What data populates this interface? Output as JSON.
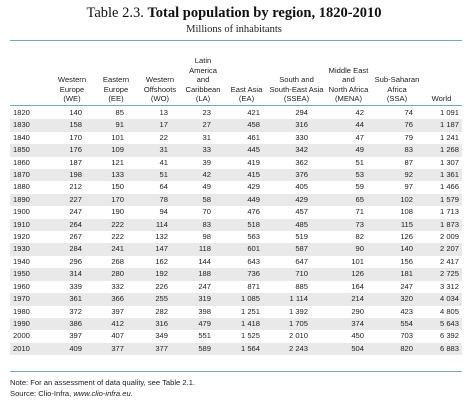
{
  "title": {
    "prefix": "Table 2.3.",
    "main": "Total population by region, 1820-2010"
  },
  "subtitle": "Millions of inhabitants",
  "columns": [
    {
      "line1": "",
      "line2": "",
      "line3": "",
      "line4": ""
    },
    {
      "line1": "",
      "line2": "",
      "line3": "Western Europe",
      "line4": "(WE)"
    },
    {
      "line1": "",
      "line2": "",
      "line3": "Eastern Europe",
      "line4": "(EE)"
    },
    {
      "line1": "",
      "line2": "",
      "line3": "Western Offshoots",
      "line4": "(WO)"
    },
    {
      "line1": "Latin",
      "line2": "America and",
      "line3": "Caribbean",
      "line4": "(LA)"
    },
    {
      "line1": "",
      "line2": "",
      "line3": "",
      "line4": "East Asia (EA)"
    },
    {
      "line1": "",
      "line2": "South and",
      "line3": "South-East Asia",
      "line4": "(SSEA)"
    },
    {
      "line1": "",
      "line2": "Middle East and",
      "line3": "North Africa",
      "line4": "(MENA)"
    },
    {
      "line1": "",
      "line2": "",
      "line3": "Sub-Saharan Africa",
      "line4": "(SSA)"
    },
    {
      "line1": "",
      "line2": "",
      "line3": "",
      "line4": "World"
    }
  ],
  "rows": [
    [
      "1820",
      "140",
      "85",
      "13",
      "23",
      "421",
      "294",
      "42",
      "74",
      "1 091"
    ],
    [
      "1830",
      "158",
      "91",
      "17",
      "27",
      "458",
      "316",
      "44",
      "76",
      "1 187"
    ],
    [
      "1840",
      "170",
      "101",
      "22",
      "31",
      "461",
      "330",
      "47",
      "79",
      "1 241"
    ],
    [
      "1850",
      "176",
      "109",
      "31",
      "33",
      "445",
      "342",
      "49",
      "83",
      "1 268"
    ],
    [
      "1860",
      "187",
      "121",
      "41",
      "39",
      "419",
      "362",
      "51",
      "87",
      "1 307"
    ],
    [
      "1870",
      "198",
      "133",
      "51",
      "42",
      "415",
      "376",
      "53",
      "92",
      "1 361"
    ],
    [
      "1880",
      "212",
      "150",
      "64",
      "49",
      "429",
      "405",
      "59",
      "97",
      "1 466"
    ],
    [
      "1890",
      "227",
      "170",
      "78",
      "58",
      "449",
      "429",
      "65",
      "102",
      "1 579"
    ],
    [
      "1900",
      "247",
      "190",
      "94",
      "70",
      "476",
      "457",
      "71",
      "108",
      "1 713"
    ],
    [
      "1910",
      "264",
      "222",
      "114",
      "83",
      "518",
      "485",
      "73",
      "115",
      "1 873"
    ],
    [
      "1920",
      "267",
      "222",
      "132",
      "98",
      "563",
      "519",
      "82",
      "126",
      "2 009"
    ],
    [
      "1930",
      "284",
      "241",
      "147",
      "118",
      "601",
      "587",
      "90",
      "140",
      "2 207"
    ],
    [
      "1940",
      "296",
      "268",
      "162",
      "144",
      "643",
      "647",
      "101",
      "156",
      "2 417"
    ],
    [
      "1950",
      "314",
      "280",
      "192",
      "188",
      "736",
      "710",
      "126",
      "181",
      "2 725"
    ],
    [
      "1960",
      "339",
      "332",
      "226",
      "247",
      "871",
      "885",
      "164",
      "247",
      "3 312"
    ],
    [
      "1970",
      "361",
      "366",
      "255",
      "319",
      "1 085",
      "1 114",
      "214",
      "320",
      "4 034"
    ],
    [
      "1980",
      "372",
      "397",
      "282",
      "398",
      "1 251",
      "1 392",
      "290",
      "423",
      "4 805"
    ],
    [
      "1990",
      "386",
      "412",
      "316",
      "479",
      "1 418",
      "1 705",
      "374",
      "554",
      "5 643"
    ],
    [
      "2000",
      "397",
      "407",
      "349",
      "551",
      "1 525",
      "2 010",
      "450",
      "703",
      "6 392"
    ],
    [
      "2010",
      "409",
      "377",
      "377",
      "589",
      "1 564",
      "2 243",
      "504",
      "820",
      "6 883"
    ]
  ],
  "notes": {
    "note_line": "Note: For an assessment of data quality, see Table 2.1.",
    "source_prefix": "Source: Clio-Infra, ",
    "source_url": "www.clio-infra.eu."
  }
}
